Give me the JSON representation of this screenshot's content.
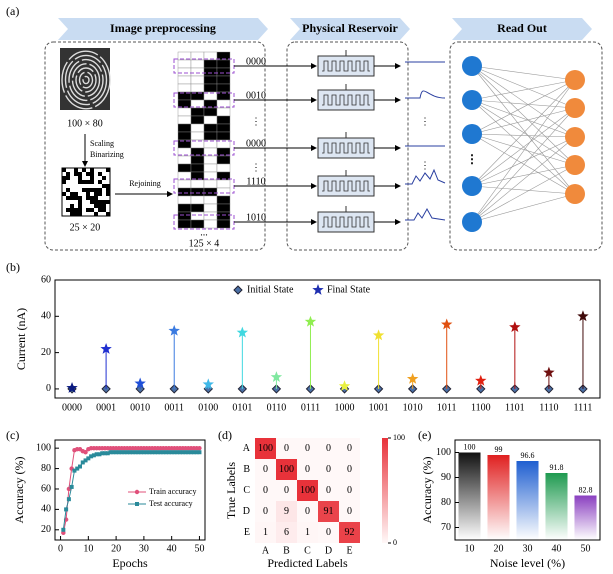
{
  "diagram": {
    "label": "(a)",
    "stages": [
      "Image preprocessing",
      "Physical Reservoir",
      "Read Out"
    ],
    "input_size": "100 × 80",
    "steps": [
      "Scaling",
      "Binarizing"
    ],
    "binary_size": "25 × 20",
    "rejoin": "Rejoining",
    "ellipsis": "...",
    "matrix_size": "125 × 4",
    "codes": [
      "0000",
      "0010",
      "⋮",
      "0000",
      "⋮",
      "1110",
      "1010"
    ],
    "trace_dots": [
      "⋮",
      "⋮"
    ],
    "node_dots": "⋮"
  },
  "chart_data": [
    {
      "type": "stem",
      "label": "(b)",
      "ylabel": "Current (nA)",
      "categories": [
        "0000",
        "0001",
        "0010",
        "0011",
        "0100",
        "0101",
        "0110",
        "0111",
        "1000",
        "1001",
        "1010",
        "1011",
        "1100",
        "1101",
        "1110",
        "1111"
      ],
      "ylim": [
        -5,
        60
      ],
      "yticks": [
        0,
        20,
        40,
        60
      ],
      "legend": "top",
      "series": [
        {
          "name": "Initial State",
          "marker": "diamond",
          "color": "#4a6fa5",
          "values": [
            0,
            0,
            0,
            0,
            0,
            0,
            0,
            0,
            0,
            0,
            0,
            0,
            0,
            0,
            0,
            0
          ]
        },
        {
          "name": "Final State",
          "marker": "star",
          "color": "#1f2fb0",
          "colors": [
            "#0a1a80",
            "#1f2fd0",
            "#2050d8",
            "#3a7ae0",
            "#40b8e8",
            "#40d8e0",
            "#80e8a0",
            "#90ee50",
            "#e8f040",
            "#f0e030",
            "#f0a020",
            "#e05010",
            "#e02010",
            "#b01010",
            "#701010",
            "#400a0a"
          ],
          "values": [
            0.5,
            22,
            3,
            32,
            2.5,
            31,
            6.5,
            37,
            1.5,
            29.5,
            5.5,
            35.5,
            4.5,
            34,
            9,
            40
          ]
        }
      ]
    },
    {
      "type": "line",
      "label": "(c)",
      "xlabel": "Epochs",
      "ylabel": "Accuracy (%)",
      "x": [
        1,
        2,
        3,
        4,
        5,
        6,
        7,
        8,
        9,
        10,
        11,
        12,
        13,
        14,
        15,
        16,
        17,
        18,
        19,
        20,
        21,
        22,
        23,
        24,
        25,
        26,
        27,
        28,
        29,
        30,
        31,
        32,
        33,
        34,
        35,
        36,
        37,
        38,
        39,
        40,
        41,
        42,
        43,
        44,
        45,
        46,
        47,
        48,
        49,
        50
      ],
      "xlim": [
        -2,
        52
      ],
      "xticks": [
        0,
        10,
        20,
        30,
        40,
        50
      ],
      "ylim": [
        10,
        108
      ],
      "yticks": [
        20,
        40,
        60,
        80,
        100
      ],
      "legend": "right",
      "series": [
        {
          "name": "Train accuracy",
          "color": "#e0507a",
          "marker": "circle",
          "values": [
            17,
            30,
            60,
            80,
            98,
            99,
            99,
            97,
            96,
            99,
            100,
            100,
            100,
            100,
            100,
            100,
            100,
            100,
            100,
            100,
            100,
            100,
            100,
            100,
            100,
            100,
            100,
            100,
            100,
            100,
            100,
            100,
            100,
            100,
            100,
            100,
            100,
            100,
            100,
            100,
            100,
            100,
            100,
            100,
            100,
            100,
            100,
            100,
            100,
            100
          ]
        },
        {
          "name": "Test accuracy",
          "color": "#2a8a9a",
          "marker": "square",
          "values": [
            20,
            40,
            50,
            62,
            78,
            80,
            82,
            86,
            88,
            90,
            92,
            93,
            94,
            94,
            95,
            95,
            95,
            96,
            96,
            96,
            96,
            96,
            96,
            96,
            96,
            96,
            96,
            96,
            96,
            96,
            96,
            96,
            96,
            96,
            96,
            96,
            96,
            96,
            96,
            96,
            96,
            96,
            96,
            96,
            96,
            96,
            96,
            96,
            96,
            96
          ]
        }
      ]
    },
    {
      "type": "heatmap",
      "label": "(d)",
      "xlabel": "Predicted Labels",
      "ylabel": "True Labels",
      "rows": [
        "A",
        "B",
        "C",
        "D",
        "E"
      ],
      "columns": [
        "A",
        "B",
        "C",
        "D",
        "E"
      ],
      "matrix": [
        [
          100,
          0,
          0,
          0,
          0
        ],
        [
          0,
          100,
          0,
          0,
          0
        ],
        [
          0,
          0,
          100,
          0,
          0
        ],
        [
          0,
          9,
          0,
          91,
          0
        ],
        [
          1,
          6,
          1,
          0,
          92
        ]
      ],
      "color": "#e8323a",
      "clim": [
        0,
        100
      ],
      "cticks": [
        0,
        100
      ]
    },
    {
      "type": "bar",
      "label": "(e)",
      "xlabel": "Noise level (%)",
      "ylabel": "Accuracy (%)",
      "categories": [
        10,
        20,
        30,
        40,
        50
      ],
      "values": [
        100,
        99,
        96.6,
        91.8,
        82.8
      ],
      "colors": [
        "#111111",
        "#e02020",
        "#1f5fd0",
        "#1f9a50",
        "#8a3fc0"
      ],
      "ylim": [
        65,
        105
      ],
      "yticks": [
        70,
        80,
        90,
        100
      ]
    }
  ]
}
